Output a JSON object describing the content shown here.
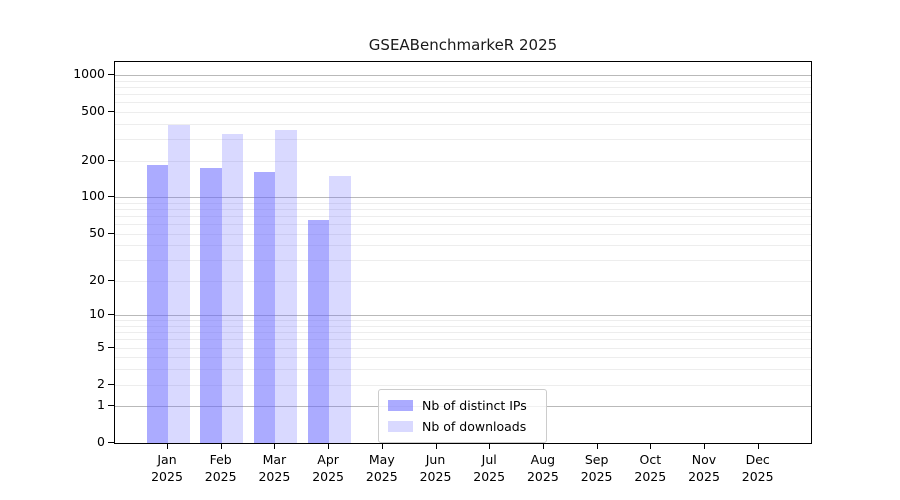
{
  "chart_data": {
    "type": "bar",
    "title": "GSEABenchmarkeR 2025",
    "categories": [
      "Jan",
      "Feb",
      "Mar",
      "Apr",
      "May",
      "Jun",
      "Jul",
      "Aug",
      "Sep",
      "Oct",
      "Nov",
      "Dec"
    ],
    "category_year": "2025",
    "series": [
      {
        "name": "Nb of distinct IPs",
        "color": "#6666ff",
        "alpha": 0.55,
        "values": [
          185,
          175,
          162,
          65,
          0,
          0,
          0,
          0,
          0,
          0,
          0,
          0
        ]
      },
      {
        "name": "Nb of downloads",
        "color": "#6666ff",
        "alpha": 0.25,
        "values": [
          390,
          330,
          355,
          150,
          0,
          0,
          0,
          0,
          0,
          0,
          0,
          0
        ]
      }
    ],
    "xlabel": "",
    "ylabel": "",
    "yscale": "log1p",
    "ylim": [
      0,
      1275
    ],
    "yticks": [
      1000,
      500,
      200,
      100,
      50,
      20,
      10,
      5,
      2,
      1,
      0
    ],
    "grid": {
      "on": true,
      "major_color": "#b9b9b9",
      "minor_color": "#ededed"
    },
    "legend": {
      "position": "lower-center"
    }
  }
}
